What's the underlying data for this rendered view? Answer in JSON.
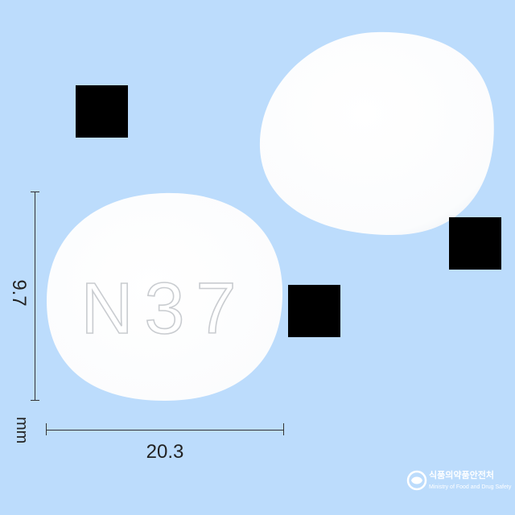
{
  "pill_front": {
    "imprint": "N37"
  },
  "dimensions": {
    "height": "9.7",
    "width": "20.3",
    "unit": "mm"
  },
  "logo": {
    "korean": "식품의약품안전처",
    "english": "Ministry of Food and Drug Safety"
  },
  "colors": {
    "background": "#bcdcfc",
    "pill": "#ffffff",
    "redaction": "#000000"
  }
}
